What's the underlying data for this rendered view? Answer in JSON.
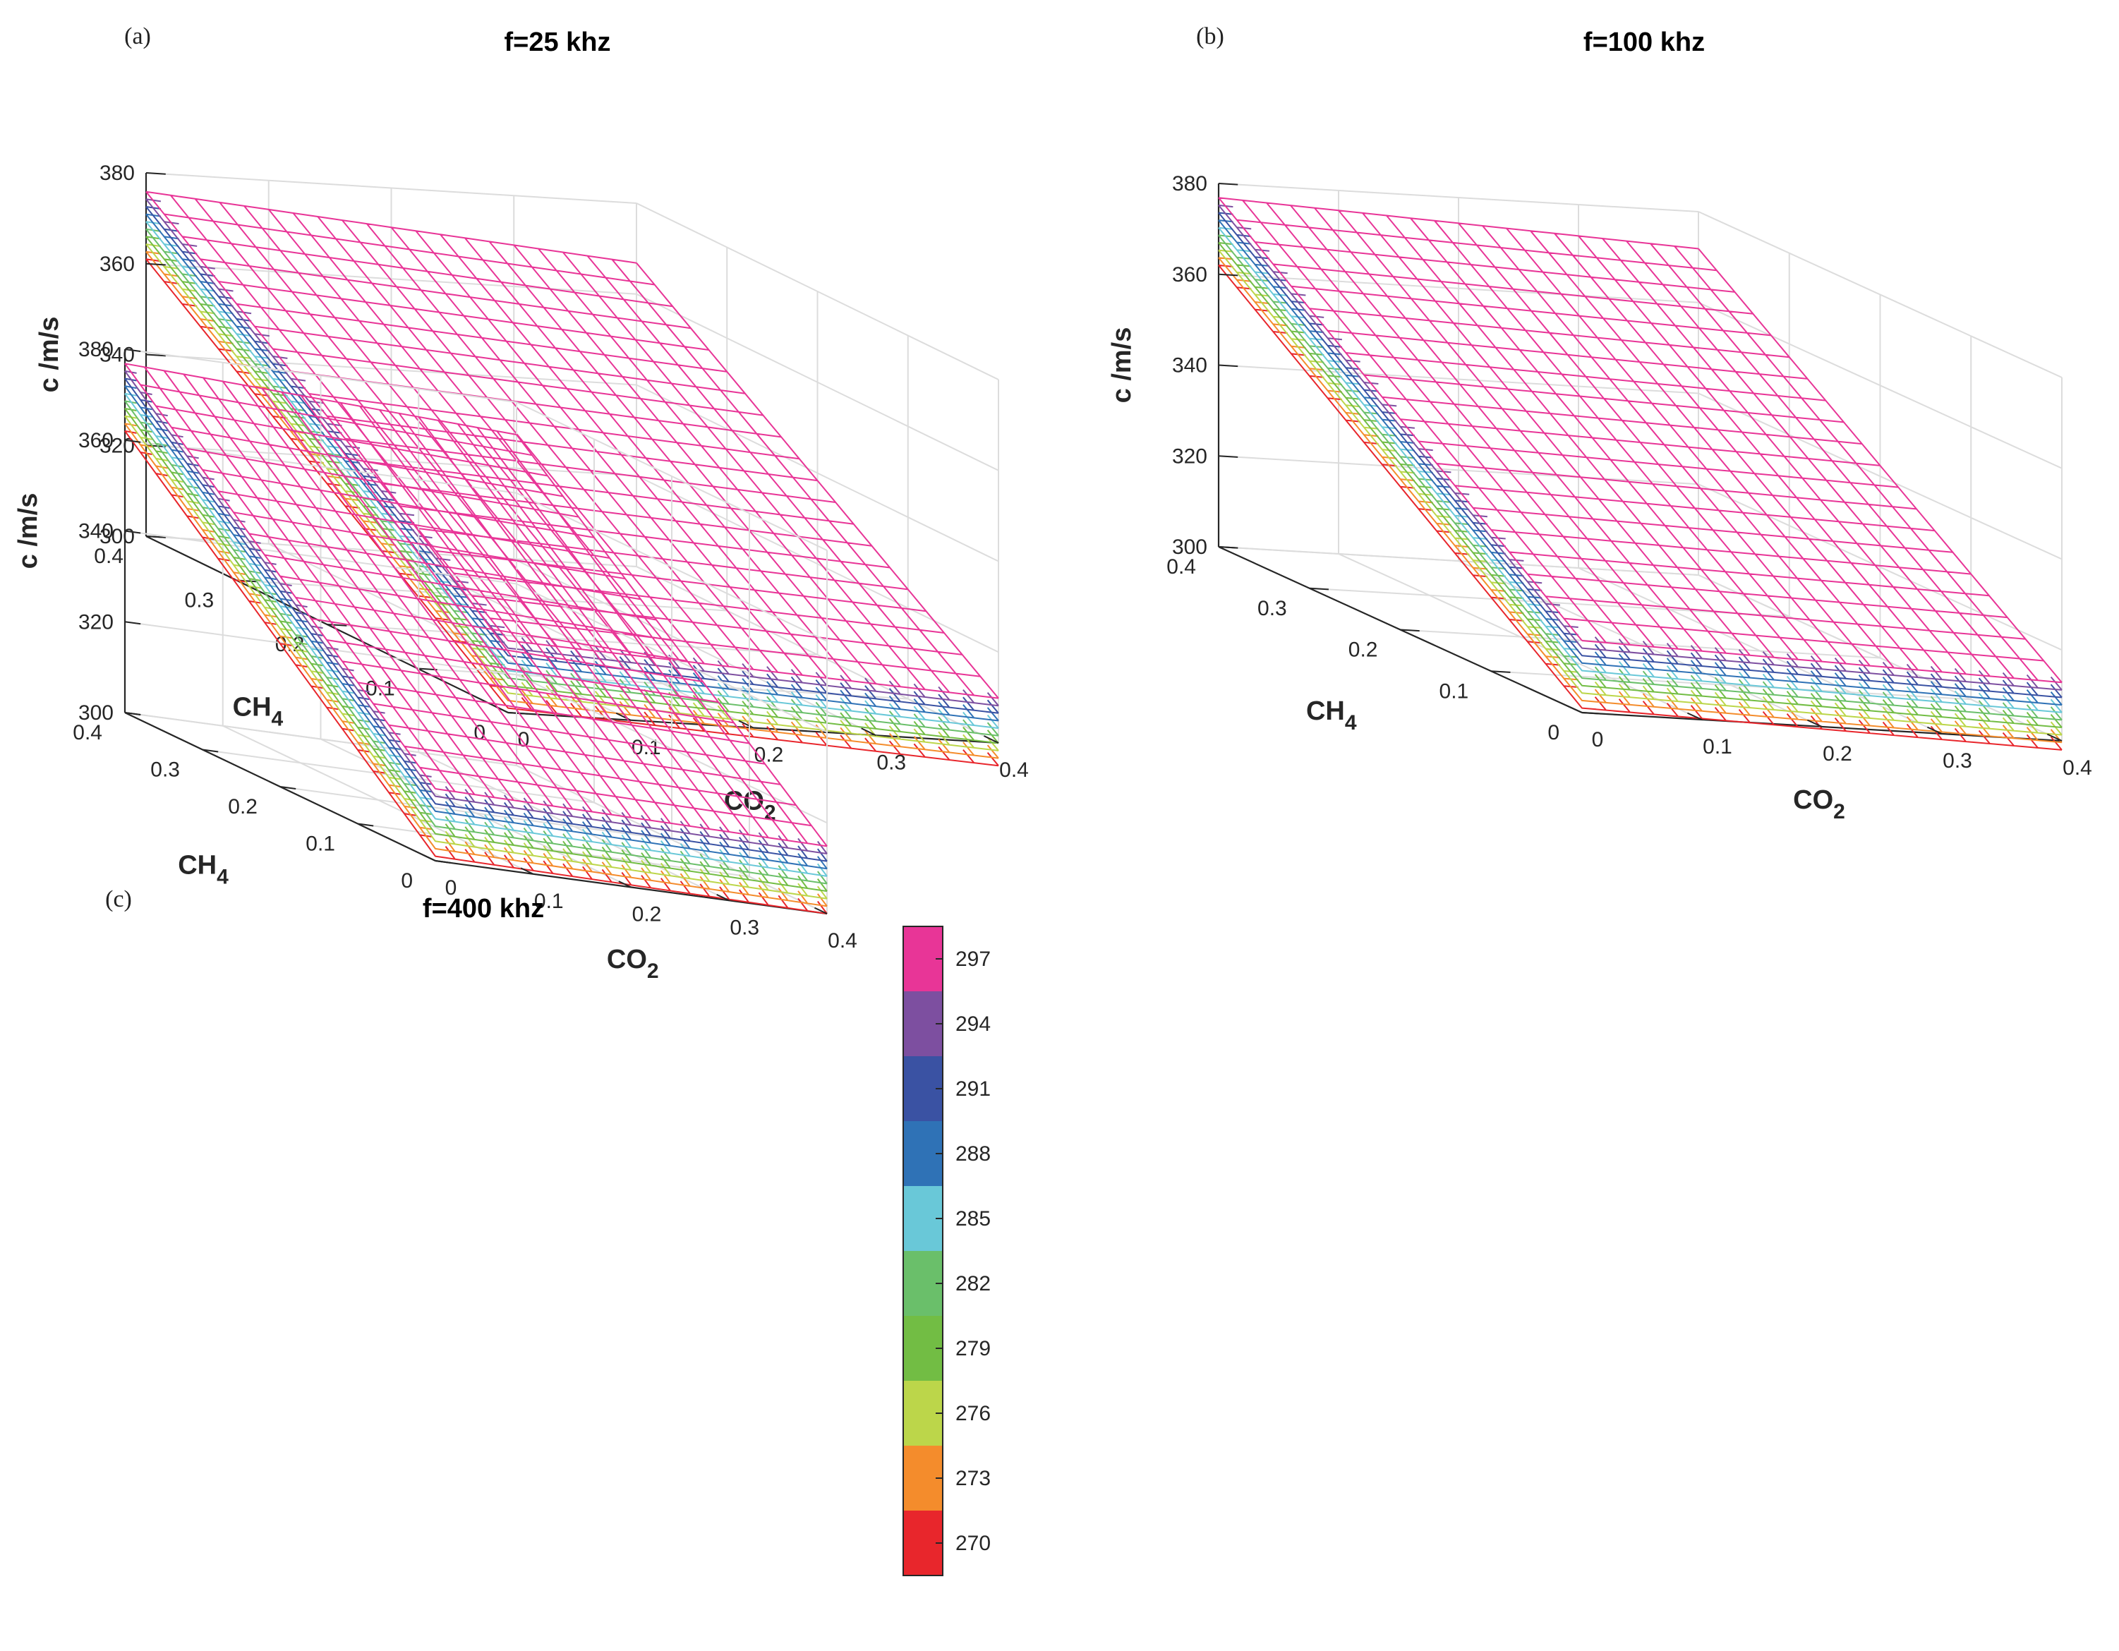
{
  "chart_data": [
    {
      "type": "surface3d",
      "panel_label": "(a)",
      "title": "f=25 khz",
      "xlabel": "CO",
      "xlabel_sub": "2",
      "ylabel": "CH",
      "ylabel_sub": "4",
      "zlabel": "c /m/s",
      "x_range": [
        0,
        0.4
      ],
      "y_range": [
        0,
        0.4
      ],
      "zlim": [
        300,
        380
      ],
      "x_ticks": [
        "0",
        "0.1",
        "0.2",
        "0.3",
        "0.4"
      ],
      "y_ticks": [
        "0",
        "0.1",
        "0.2",
        "0.3",
        "0.4"
      ],
      "z_ticks": [
        "300",
        "320",
        "340",
        "360",
        "380"
      ],
      "temperatures": [
        270,
        273,
        276,
        279,
        282,
        285,
        288,
        291,
        294,
        297
      ],
      "surface_corners_c": {
        "x0_y0": 301,
        "x0_y04": 361,
        "x04_y0": 295,
        "x04_y04": 352
      },
      "temp_slope": 0.55
    },
    {
      "type": "surface3d",
      "panel_label": "(b)",
      "title": "f=100 khz",
      "xlabel": "CO",
      "xlabel_sub": "2",
      "ylabel": "CH",
      "ylabel_sub": "4",
      "zlabel": "c /m/s",
      "x_range": [
        0,
        0.4
      ],
      "y_range": [
        0,
        0.4
      ],
      "zlim": [
        300,
        380
      ],
      "x_ticks": [
        "0",
        "0.1",
        "0.2",
        "0.3",
        "0.4"
      ],
      "y_ticks": [
        "0",
        "0.1",
        "0.2",
        "0.3",
        "0.4"
      ],
      "z_ticks": [
        "300",
        "320",
        "340",
        "360",
        "380"
      ],
      "temperatures": [
        270,
        273,
        276,
        279,
        282,
        285,
        288,
        291,
        294,
        297
      ],
      "surface_corners_c": {
        "x0_y0": 301,
        "x0_y04": 362,
        "x04_y0": 298,
        "x04_y04": 357
      },
      "temp_slope": 0.55
    },
    {
      "type": "surface3d",
      "panel_label": "(c)",
      "title": "f=400 khz",
      "xlabel": "CO",
      "xlabel_sub": "2",
      "ylabel": "CH",
      "ylabel_sub": "4",
      "zlabel": "c /m/s",
      "x_range": [
        0,
        0.4
      ],
      "y_range": [
        0,
        0.4
      ],
      "zlim": [
        300,
        380
      ],
      "x_ticks": [
        "0",
        "0.1",
        "0.2",
        "0.3",
        "0.4"
      ],
      "y_ticks": [
        "0",
        "0.1",
        "0.2",
        "0.3",
        "0.4"
      ],
      "z_ticks": [
        "300",
        "320",
        "340",
        "360",
        "380"
      ],
      "temperatures": [
        270,
        273,
        276,
        279,
        282,
        285,
        288,
        291,
        294,
        297
      ],
      "surface_corners_c": {
        "x0_y0": 301,
        "x0_y04": 362,
        "x04_y0": 300,
        "x04_y04": 358
      },
      "temp_slope": 0.55
    }
  ],
  "colorbar": {
    "levels": [
      270,
      273,
      276,
      279,
      282,
      285,
      288,
      291,
      294,
      297
    ],
    "labels": [
      "270",
      "273",
      "276",
      "279",
      "282",
      "285",
      "288",
      "291",
      "294",
      "297"
    ],
    "colors": [
      "#e8262c",
      "#f48c2c",
      "#bcd64a",
      "#72bd44",
      "#6abf6a",
      "#69c8d8",
      "#2f72b6",
      "#3a52a3",
      "#7d4fa0",
      "#e83597"
    ]
  }
}
